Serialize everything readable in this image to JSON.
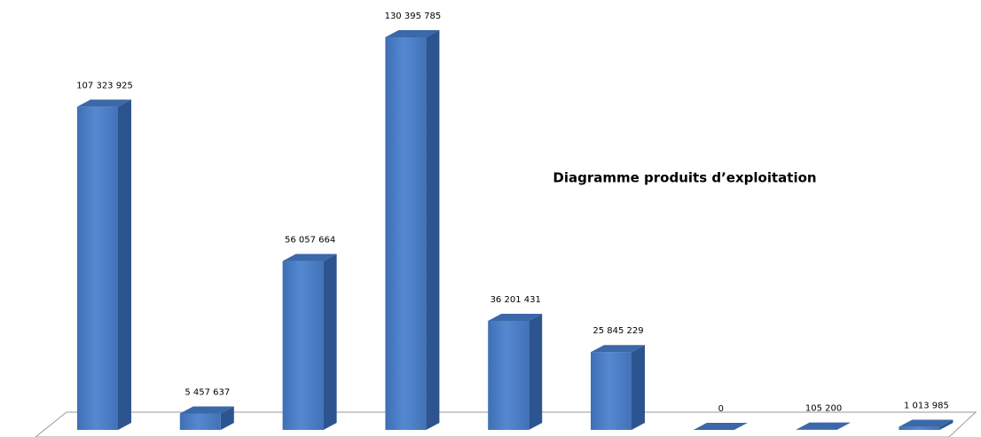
{
  "chart_data": {
    "type": "bar3d",
    "title": "Diagramme produits d’exploitation",
    "values": [
      107323925,
      5457637,
      56057664,
      130395785,
      36201431,
      25845229,
      0,
      105200,
      1013985
    ],
    "value_labels": [
      "107 323 925",
      "5 457 637",
      "56 057 664",
      "130 395 785",
      "36 201 431",
      "25 845 229",
      "0",
      "105 200",
      "1 013 985"
    ],
    "color": "#4a7cc4"
  }
}
